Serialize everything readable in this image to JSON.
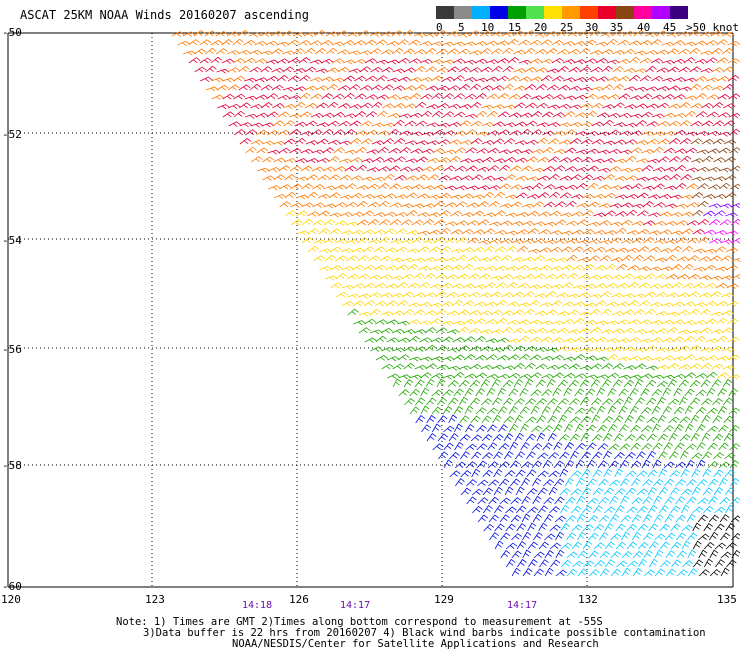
{
  "header": {
    "title": "ASCAT 25KM NOAA Winds 20160207 ascending"
  },
  "legend": {
    "entries": [
      {
        "color": "#3a3a3a"
      },
      {
        "color": "#8a8a8a"
      },
      {
        "color": "#00b0ff"
      },
      {
        "color": "#0000e6"
      },
      {
        "color": "#00a000"
      },
      {
        "color": "#50e050"
      },
      {
        "color": "#ffe000"
      },
      {
        "color": "#ff9a00"
      },
      {
        "color": "#ff4000"
      },
      {
        "color": "#e8002a"
      },
      {
        "color": "#8b4513"
      },
      {
        "color": "#ff00a0"
      },
      {
        "color": "#b000ff"
      },
      {
        "color": "#3a0080"
      }
    ],
    "labels": [
      "0",
      "5",
      "10",
      "15",
      "20",
      "25",
      "30",
      "35",
      "40",
      "45",
      ">50 knots"
    ]
  },
  "axes": {
    "lat_labels": [
      "-50",
      "-52",
      "-54",
      "-56",
      "-58",
      "-60"
    ],
    "lon_labels": [
      "120",
      "123",
      "126",
      "129",
      "132",
      "135"
    ],
    "time_labels": [
      "14:18",
      "14:17",
      "14:17"
    ]
  },
  "notes": {
    "line1": "Note: 1) Times are GMT 2)Times along bottom correspond to measurement at -55S",
    "line2": "3)Data buffer is 22 hrs from 20160207 4) Black wind barbs indicate possible contamination",
    "line3": "NOAA/NESDIS/Center for Satellite Applications and Research"
  },
  "colors": {
    "grid": "#000000",
    "strong": "#e0003c",
    "orange": "#ff7a00",
    "yellow": "#ffd400",
    "green": "#1fa800",
    "blue": "#0010e0",
    "cyan": "#00c8ff",
    "brown": "#8b4513",
    "magenta": "#ff00ff",
    "purple": "#8000ff",
    "black": "#000000"
  }
}
